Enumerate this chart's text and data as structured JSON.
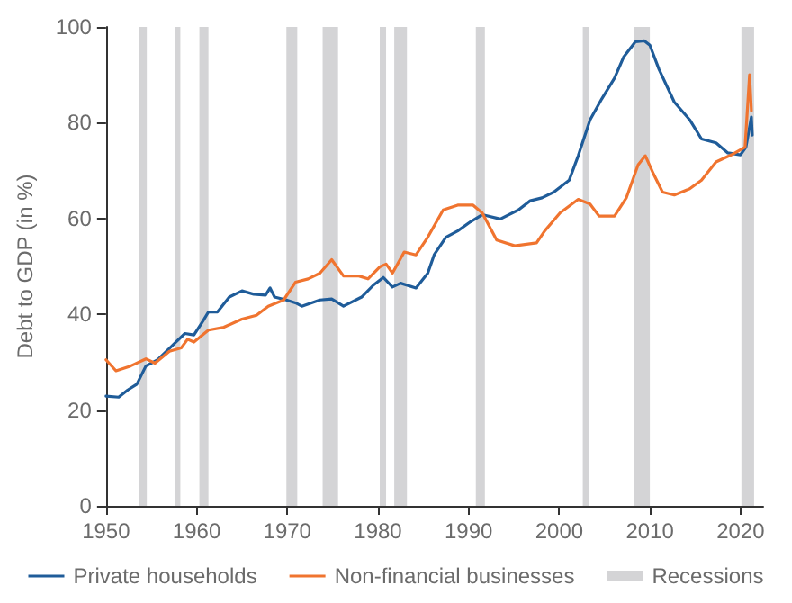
{
  "chart_data": {
    "type": "line",
    "ylabel": "Debt to GDP (in %)",
    "xlim": [
      1950,
      2022.5
    ],
    "xticks": [
      1950,
      1960,
      1970,
      1980,
      1990,
      2000,
      2010,
      2020
    ],
    "ylim": [
      0,
      100
    ],
    "yticks": [
      0,
      20,
      40,
      60,
      80,
      100
    ],
    "grid": false,
    "legend": "bottom",
    "marker": "none",
    "line_style": "solid",
    "series": [
      {
        "name": "Private households",
        "color": "#1f5c99",
        "x": [
          1950,
          1951.4,
          1952.4,
          1953.4,
          1954.4,
          1955.7,
          1957.7,
          1958.7,
          1959.7,
          1960.7,
          1961.3,
          1962.3,
          1963.6,
          1965,
          1966.3,
          1967.6,
          1968.1,
          1968.6,
          1969.9,
          1970.9,
          1971.6,
          1973.6,
          1974.9,
          1976.2,
          1978.2,
          1979.5,
          1980.6,
          1981.6,
          1982.5,
          1984.2,
          1985.5,
          1986.2,
          1987.5,
          1988.8,
          1990.2,
          1991.5,
          1993.5,
          1995.5,
          1996.8,
          1998.1,
          1999.4,
          2001.1,
          2002.1,
          2003.4,
          2004.7,
          2006.1,
          2007.1,
          2008.4,
          2009.4,
          2010,
          2011,
          2012.7,
          2014.4,
          2015.7,
          2017.3,
          2018.6,
          2020,
          2020.6,
          2021.2,
          2021.3
        ],
        "values": [
          22.9,
          22.7,
          24.2,
          25.4,
          29.2,
          30.5,
          34.2,
          36,
          35.7,
          38.6,
          40.5,
          40.5,
          43.6,
          44.9,
          44.2,
          44,
          45.5,
          43.6,
          43,
          42.4,
          41.7,
          43,
          43.2,
          41.7,
          43.6,
          46.1,
          47.7,
          45.7,
          46.5,
          45.5,
          48.6,
          52.4,
          56.1,
          57.4,
          59.3,
          60.8,
          59.9,
          61.8,
          63.7,
          64.3,
          65.5,
          68,
          73.1,
          80.6,
          85,
          89.3,
          93.7,
          96.9,
          97.1,
          96.2,
          91.2,
          84.3,
          80.6,
          76.6,
          75.8,
          73.7,
          73.3,
          74.9,
          81.2,
          77.4
        ]
      },
      {
        "name": "Non-financial businesses",
        "color": "#f0742f",
        "x": [
          1950,
          1951.1,
          1952.7,
          1954.4,
          1955.4,
          1957,
          1958.3,
          1959,
          1959.7,
          1961.3,
          1963,
          1965,
          1966.6,
          1967.9,
          1969.6,
          1970.9,
          1972.3,
          1973.6,
          1974.9,
          1976.2,
          1977.9,
          1978.9,
          1980.2,
          1980.9,
          1981.6,
          1982.9,
          1984.2,
          1985.5,
          1987.2,
          1988.8,
          1990.5,
          1991.5,
          1993.1,
          1995.1,
          1997.5,
          1998.4,
          2000.1,
          2002.1,
          2003.4,
          2004.4,
          2006.1,
          2007.4,
          2008.7,
          2009.5,
          2010.4,
          2011.4,
          2012.7,
          2014.4,
          2015.7,
          2017.3,
          2019,
          2020.5,
          2021,
          2021.2
        ],
        "values": [
          30.5,
          28.2,
          29.2,
          30.7,
          29.8,
          32.3,
          33,
          34.8,
          34.2,
          36.7,
          37.3,
          39,
          39.8,
          41.7,
          43,
          46.7,
          47.4,
          48.6,
          51.4,
          48,
          48,
          47.4,
          49.9,
          50.5,
          48.6,
          53,
          52.4,
          56.1,
          61.8,
          62.8,
          62.8,
          61.2,
          55.5,
          54.3,
          54.9,
          57.4,
          61.2,
          64,
          63,
          60.5,
          60.5,
          64.3,
          71.2,
          73.1,
          69.3,
          65.5,
          64.9,
          66.2,
          68,
          71.8,
          73.3,
          74.9,
          90,
          82.5
        ]
      }
    ],
    "bands": [
      {
        "axis": "x",
        "from": 1953.6,
        "to": 1954.5,
        "label": "Recessions",
        "color": "#d4d4d6"
      },
      {
        "axis": "x",
        "from": 1957.6,
        "to": 1958.2
      },
      {
        "axis": "x",
        "from": 1960.3,
        "to": 1961.3
      },
      {
        "axis": "x",
        "from": 1969.9,
        "to": 1971.1
      },
      {
        "axis": "x",
        "from": 1973.9,
        "to": 1975.6
      },
      {
        "axis": "x",
        "from": 1980.2,
        "to": 1980.9
      },
      {
        "axis": "x",
        "from": 1981.8,
        "to": 1983.2
      },
      {
        "axis": "x",
        "from": 1990.8,
        "to": 1991.8
      },
      {
        "axis": "x",
        "from": 2002.6,
        "to": 2003.3
      },
      {
        "axis": "x",
        "from": 2008.3,
        "to": 2010
      },
      {
        "axis": "x",
        "from": 2020.1,
        "to": 2021.5
      }
    ]
  }
}
